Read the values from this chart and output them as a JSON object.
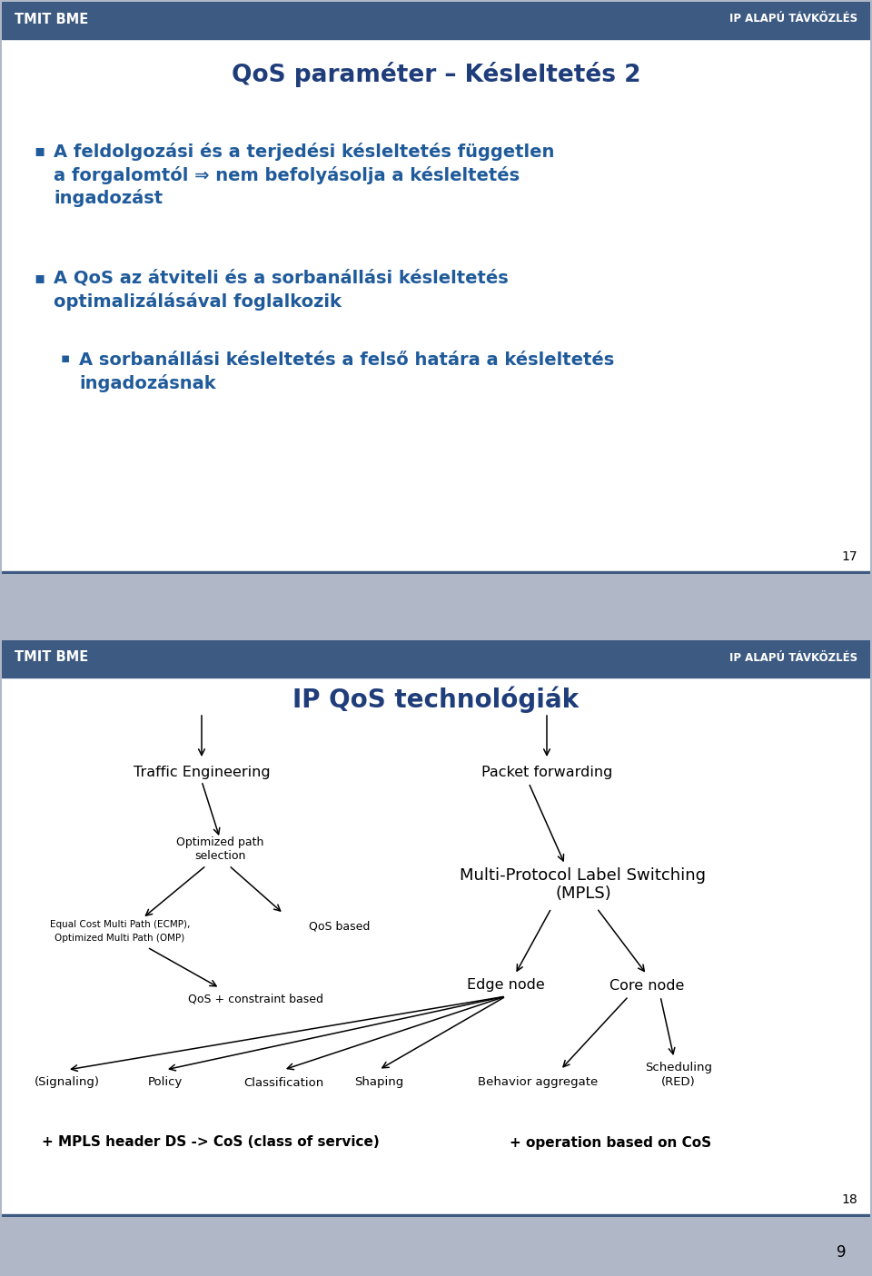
{
  "slide1": {
    "header_bg": "#4a6741",
    "header_text_left": "TMIT BME",
    "header_text_right": "IP ALAPÚ TÁVKÖZLÉS",
    "title": "QoS paraméter – Késleltetés 2",
    "title_color": "#1f3d7a",
    "slide_number": "17"
  },
  "slide2": {
    "header_bg": "#4a6741",
    "header_text_left": "TMIT BME",
    "header_text_right": "IP ALAPÚ TÁVKÖZLÉS",
    "title": "IP QoS technológiák",
    "title_color": "#1f3d7a",
    "slide_number": "18",
    "bottom_text1": "+ MPLS header DS -> CoS (class of service)",
    "bottom_text2": "+ operation based on CoS"
  },
  "colors": {
    "white": "#ffffff",
    "black": "#000000",
    "header_bg": "#3d5a82",
    "title_blue": "#1f3d7a",
    "bullet_blue": "#1f5a9a",
    "slide_bg": "#ffffff",
    "separator": "#3d5a82",
    "outer_bg": "#b0b8c8",
    "slide_border": "#3d5a82"
  },
  "page_number": "9"
}
